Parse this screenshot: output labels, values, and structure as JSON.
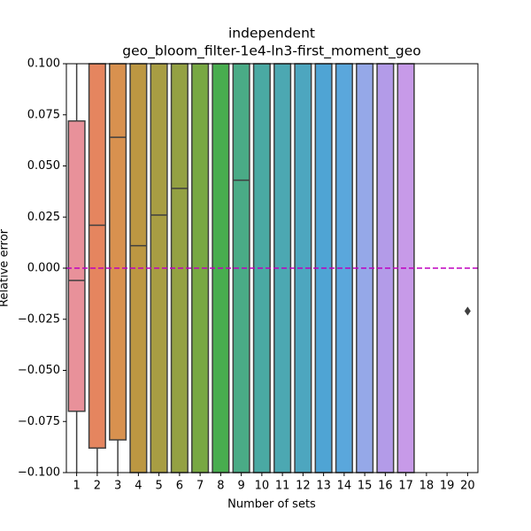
{
  "chart_data": {
    "type": "box",
    "title": "independent",
    "subtitle": "geo_bloom_filter-1e4-ln3-first_moment_geo",
    "x_label": "Number of sets",
    "y_label": "Relative error",
    "categories": [
      "1",
      "2",
      "3",
      "4",
      "5",
      "6",
      "7",
      "8",
      "9",
      "10",
      "11",
      "12",
      "13",
      "14",
      "15",
      "16",
      "17",
      "18",
      "19",
      "20"
    ],
    "boxes": [
      {
        "q1": -0.07,
        "median": -0.006,
        "q3": 0.072,
        "color": "#e8919a"
      },
      {
        "q1": -0.088,
        "median": 0.021,
        "q3": null,
        "color": "#e5855f"
      },
      {
        "q1": -0.084,
        "median": 0.064,
        "q3": null,
        "color": "#d8914f"
      },
      {
        "q1": null,
        "median": 0.011,
        "q3": null,
        "color": "#bc9742"
      },
      {
        "q1": null,
        "median": 0.026,
        "q3": null,
        "color": "#a89d43"
      },
      {
        "q1": null,
        "median": 0.039,
        "q3": null,
        "color": "#94a143"
      },
      {
        "q1": null,
        "median": null,
        "q3": null,
        "color": "#78a843"
      },
      {
        "q1": null,
        "median": null,
        "q3": null,
        "color": "#48ad4f"
      },
      {
        "q1": null,
        "median": 0.043,
        "q3": null,
        "color": "#4aab86"
      },
      {
        "q1": null,
        "median": null,
        "q3": null,
        "color": "#4aa9a3"
      },
      {
        "q1": null,
        "median": null,
        "q3": null,
        "color": "#4ca8b2"
      },
      {
        "q1": null,
        "median": null,
        "q3": null,
        "color": "#4da6bf"
      },
      {
        "q1": null,
        "median": null,
        "q3": null,
        "color": "#4fa4d4"
      },
      {
        "q1": null,
        "median": null,
        "q3": null,
        "color": "#5aa7dc"
      },
      {
        "q1": null,
        "median": null,
        "q3": null,
        "color": "#95a8e8"
      },
      {
        "q1": null,
        "median": null,
        "q3": null,
        "color": "#b39be8"
      },
      {
        "q1": null,
        "median": null,
        "q3": null,
        "color": "#c79ae8"
      },
      null,
      null,
      {
        "outliers": [
          -0.021
        ]
      }
    ],
    "edge_color": "#3f3f3f",
    "reference_line": {
      "value": 0,
      "color": "#bf00bf"
    },
    "ylim": [
      -0.1,
      0.1
    ],
    "yticks": [
      {
        "value": -0.1,
        "label": "−0.100"
      },
      {
        "value": -0.075,
        "label": "−0.075"
      },
      {
        "value": -0.05,
        "label": "−0.050"
      },
      {
        "value": -0.025,
        "label": "−0.025"
      },
      {
        "value": 0,
        "label": "0.000"
      },
      {
        "value": 0.025,
        "label": "0.025"
      },
      {
        "value": 0.05,
        "label": "0.050"
      },
      {
        "value": 0.075,
        "label": "0.075"
      },
      {
        "value": 0.1,
        "label": "0.100"
      }
    ]
  }
}
